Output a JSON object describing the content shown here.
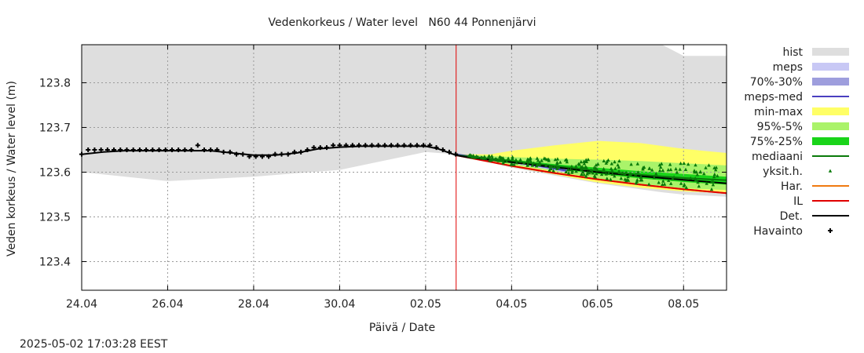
{
  "chart_data": {
    "type": "line",
    "title": "Vedenkorkeus / Water level   N60 44 Ponnenjärvi",
    "xlabel": "Päivä / Date",
    "ylabel": "Veden korkeus / Water level (m)",
    "timestamp": "2025-05-02 17:03:28 EEST",
    "x_range_days": [
      0,
      15
    ],
    "ylim": [
      123.336,
      123.885
    ],
    "grid": true,
    "x_ticks": [
      {
        "day": 0,
        "label": "24.04"
      },
      {
        "day": 2,
        "label": "26.04"
      },
      {
        "day": 4,
        "label": "28.04"
      },
      {
        "day": 6,
        "label": "30.04"
      },
      {
        "day": 8,
        "label": "02.05"
      },
      {
        "day": 10,
        "label": "04.05"
      },
      {
        "day": 12,
        "label": "06.05"
      },
      {
        "day": 14,
        "label": "08.05"
      }
    ],
    "y_ticks": [
      {
        "value": 123.8,
        "label": "123.8"
      },
      {
        "value": 123.7,
        "label": "123.7"
      },
      {
        "value": 123.6,
        "label": "123.6"
      },
      {
        "value": 123.5,
        "label": "123.5"
      },
      {
        "value": 123.4,
        "label": "123.4"
      }
    ],
    "forecast_start_day": 8.71,
    "legend_position": "right",
    "legend": [
      {
        "key": "hist",
        "label": "hist",
        "type": "fill",
        "color": "#dedede"
      },
      {
        "key": "meps",
        "label": "meps",
        "type": "fill",
        "color": "#c8c8f5"
      },
      {
        "key": "p70_30",
        "label": "70%-30%",
        "type": "fill",
        "color": "#9e9edd"
      },
      {
        "key": "meps_med",
        "label": "meps-med",
        "type": "line",
        "color": "#4a3fc0"
      },
      {
        "key": "minmax",
        "label": "min-max",
        "type": "fill",
        "color": "#ffff66"
      },
      {
        "key": "p95_5",
        "label": "95%-5%",
        "type": "fill",
        "color": "#aaf36a"
      },
      {
        "key": "p75_25",
        "label": "75%-25%",
        "type": "fill",
        "color": "#19d419"
      },
      {
        "key": "mediaani",
        "label": "mediaani",
        "type": "line",
        "color": "#0a7a0a"
      },
      {
        "key": "yksit",
        "label": "yksit.h.",
        "type": "marker",
        "color": "#0a7a0a"
      },
      {
        "key": "har",
        "label": "Har.",
        "type": "line",
        "color": "#f07a10"
      },
      {
        "key": "il",
        "label": "IL",
        "type": "line",
        "color": "#e00000"
      },
      {
        "key": "det",
        "label": "Det.",
        "type": "line",
        "color": "#000000"
      },
      {
        "key": "havainto",
        "label": "Havainto",
        "type": "marker",
        "color": "#000000"
      }
    ],
    "hist_band": {
      "x": [
        0,
        2,
        4,
        6,
        8,
        8.7,
        10,
        12,
        13.5,
        14,
        15
      ],
      "upper": [
        123.885,
        123.885,
        123.885,
        123.885,
        123.885,
        123.885,
        123.885,
        123.885,
        123.885,
        123.86,
        123.86
      ],
      "lower": [
        123.6,
        123.58,
        123.59,
        123.605,
        123.645,
        123.64,
        123.61,
        123.575,
        123.555,
        123.55,
        123.545
      ]
    },
    "minmax_band": {
      "x": [
        8.7,
        9.5,
        10,
        11,
        12,
        13,
        14,
        15
      ],
      "upper": [
        123.64,
        123.64,
        123.648,
        123.66,
        123.67,
        123.665,
        123.652,
        123.643
      ],
      "lower": [
        123.64,
        123.625,
        123.612,
        123.595,
        123.577,
        123.565,
        123.557,
        123.553
      ]
    },
    "p95_5_band": {
      "x": [
        8.7,
        10,
        11,
        12,
        13,
        14,
        15
      ],
      "upper": [
        123.64,
        123.634,
        123.63,
        123.628,
        123.625,
        123.62,
        123.615
      ],
      "lower": [
        123.64,
        123.617,
        123.602,
        123.586,
        123.574,
        123.564,
        123.56
      ]
    },
    "p75_25_band": {
      "x": [
        8.7,
        10,
        11,
        12,
        13,
        14,
        15
      ],
      "upper": [
        123.638,
        123.628,
        123.618,
        123.61,
        123.602,
        123.596,
        123.59
      ],
      "lower": [
        123.638,
        123.62,
        123.608,
        123.596,
        123.586,
        123.578,
        123.572
      ]
    },
    "meps_band": {
      "x": [
        8.7,
        9.5,
        10,
        10.5,
        11,
        11.3
      ],
      "upper": [
        123.64,
        123.632,
        123.626,
        123.62,
        123.612,
        123.607
      ],
      "lower": [
        123.64,
        123.628,
        123.62,
        123.612,
        123.604,
        123.598
      ]
    },
    "p70_30_band": {
      "x": [
        8.7,
        9.5,
        10,
        10.5,
        11,
        11.3
      ],
      "upper": [
        123.64,
        123.631,
        123.624,
        123.618,
        123.61,
        123.605
      ],
      "lower": [
        123.64,
        123.629,
        123.622,
        123.614,
        123.606,
        123.6
      ]
    },
    "meps_med_line": {
      "x": [
        8.7,
        9.5,
        10,
        10.5,
        11,
        11.3
      ],
      "y": [
        123.64,
        123.63,
        123.623,
        123.616,
        123.608,
        123.603
      ]
    },
    "mediaani_line": {
      "x": [
        8.7,
        10,
        11,
        12,
        13,
        14,
        15
      ],
      "y": [
        123.638,
        123.625,
        123.614,
        123.603,
        123.594,
        123.587,
        123.582
      ]
    },
    "har_line": {
      "x": [
        8.7,
        10,
        11,
        12,
        13,
        14,
        15
      ],
      "y": [
        123.638,
        123.614,
        123.598,
        123.584,
        123.572,
        123.562,
        123.553
      ]
    },
    "il_line": {
      "x": [
        8.7,
        10,
        11,
        12,
        13,
        14,
        15
      ],
      "y": [
        123.638,
        123.614,
        123.598,
        123.584,
        123.572,
        123.562,
        123.553
      ]
    },
    "det_line": {
      "x": [
        0,
        0.5,
        1,
        2,
        3,
        3.5,
        4,
        4.5,
        5,
        5.5,
        6,
        6.5,
        7,
        7.5,
        8,
        8.3,
        8.7,
        9,
        10,
        11,
        12,
        13,
        14,
        15
      ],
      "y": [
        123.64,
        123.645,
        123.648,
        123.648,
        123.648,
        123.643,
        123.638,
        123.638,
        123.643,
        123.652,
        123.656,
        123.658,
        123.658,
        123.658,
        123.658,
        123.652,
        123.638,
        123.633,
        123.622,
        123.611,
        123.6,
        123.591,
        123.583,
        123.575
      ]
    },
    "havainto_points": {
      "x": [
        0,
        0.15,
        0.3,
        0.45,
        0.6,
        0.75,
        0.9,
        1.05,
        1.2,
        1.35,
        1.5,
        1.65,
        1.8,
        1.95,
        2.1,
        2.25,
        2.4,
        2.55,
        2.7,
        2.85,
        3.0,
        3.15,
        3.3,
        3.45,
        3.6,
        3.75,
        3.9,
        4.05,
        4.2,
        4.35,
        4.5,
        4.65,
        4.8,
        4.95,
        5.1,
        5.25,
        5.4,
        5.55,
        5.7,
        5.85,
        6.0,
        6.15,
        6.3,
        6.45,
        6.6,
        6.75,
        6.9,
        7.05,
        7.2,
        7.35,
        7.5,
        7.65,
        7.8,
        7.95,
        8.1,
        8.25,
        8.4,
        8.55,
        8.7
      ],
      "y": [
        123.64,
        123.65,
        123.65,
        123.65,
        123.65,
        123.65,
        123.65,
        123.65,
        123.65,
        123.65,
        123.65,
        123.65,
        123.65,
        123.65,
        123.65,
        123.65,
        123.65,
        123.65,
        123.66,
        123.65,
        123.65,
        123.65,
        123.645,
        123.645,
        123.64,
        123.64,
        123.635,
        123.635,
        123.635,
        123.635,
        123.64,
        123.64,
        123.64,
        123.645,
        123.645,
        123.65,
        123.655,
        123.655,
        123.655,
        123.66,
        123.66,
        123.66,
        123.66,
        123.66,
        123.66,
        123.66,
        123.66,
        123.66,
        123.66,
        123.66,
        123.66,
        123.66,
        123.66,
        123.66,
        123.66,
        123.655,
        123.65,
        123.645,
        123.64
      ]
    }
  }
}
